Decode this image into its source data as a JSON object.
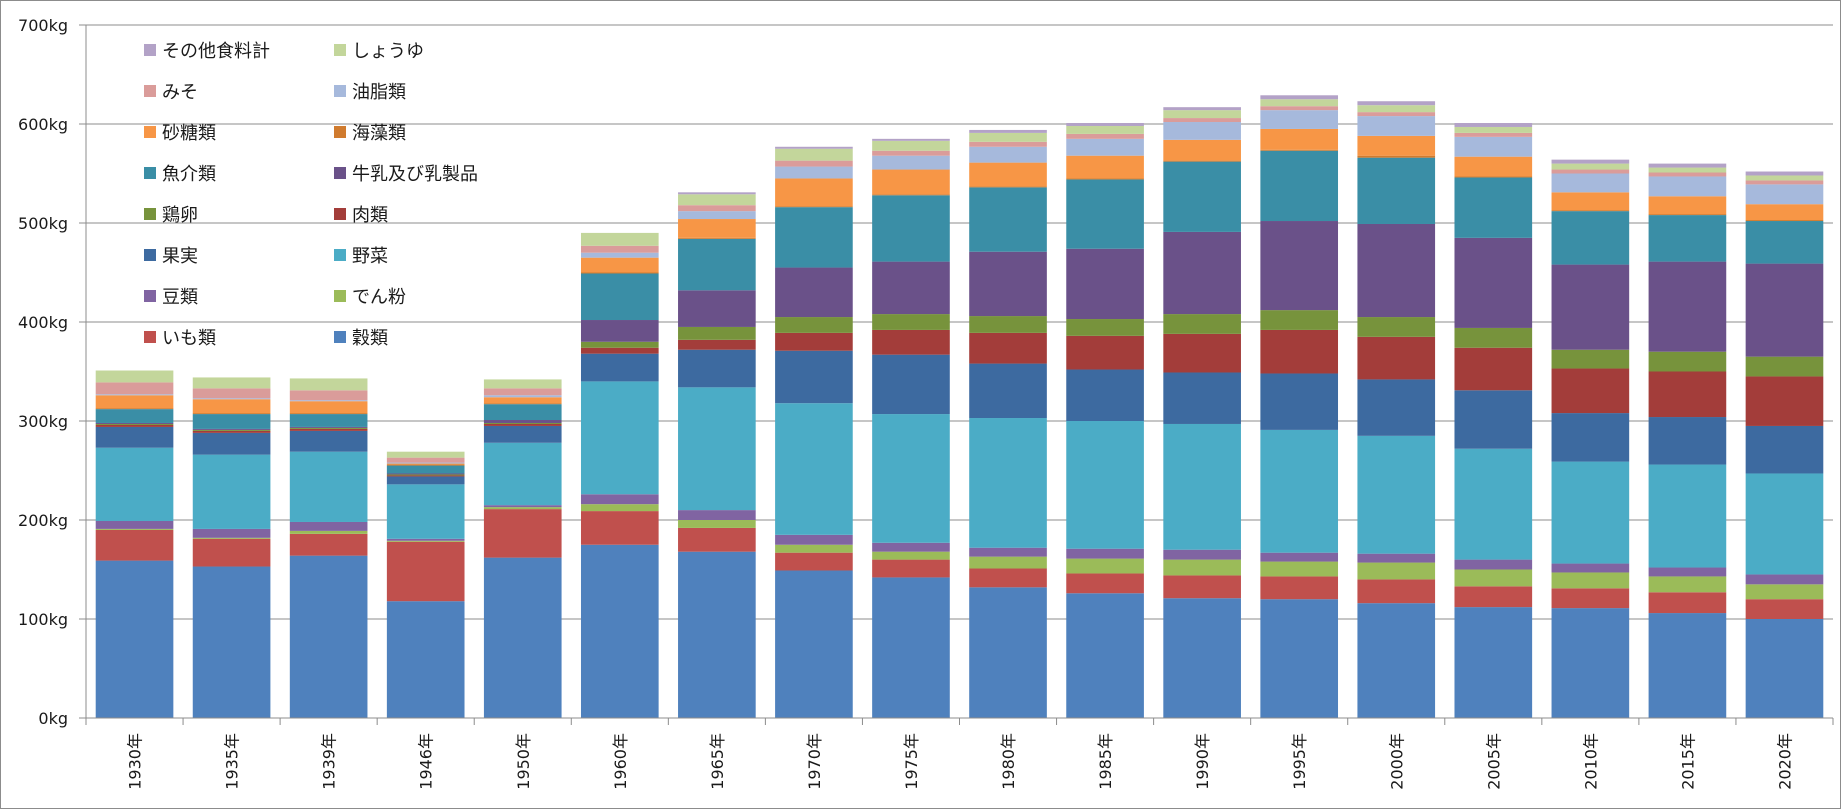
{
  "chart_data": {
    "type": "bar",
    "stacked": true,
    "title": "",
    "xlabel": "",
    "ylabel": "",
    "ylim": [
      0,
      700
    ],
    "yticks": [
      "0kg",
      "100kg",
      "200kg",
      "300kg",
      "400kg",
      "500kg",
      "600kg",
      "700kg"
    ],
    "grid": true,
    "legend_position": "top-left",
    "categories": [
      "1930年",
      "1935年",
      "1939年",
      "1946年",
      "1950年",
      "1960年",
      "1965年",
      "1970年",
      "1975年",
      "1980年",
      "1985年",
      "1990年",
      "1995年",
      "2000年",
      "2005年",
      "2010年",
      "2015年",
      "2020年"
    ],
    "legend_order": [
      "その他食料計",
      "しょうゆ",
      "みそ",
      "油脂類",
      "砂糖類",
      "海藻類",
      "魚介類",
      "牛乳及び乳製品",
      "鶏卵",
      "肉類",
      "果実",
      "野菜",
      "豆類",
      "でん粉",
      "いも類",
      "穀類"
    ],
    "series": [
      {
        "name": "穀類",
        "color": "#4f81bd",
        "values": [
          159,
          153,
          164,
          118,
          162,
          175,
          168,
          149,
          142,
          132,
          126,
          121,
          120,
          116,
          112,
          111,
          106,
          100
        ]
      },
      {
        "name": "いも類",
        "color": "#c0504d",
        "values": [
          31,
          28,
          22,
          60,
          49,
          34,
          24,
          18,
          18,
          19,
          20,
          23,
          23,
          24,
          21,
          20,
          21,
          20
        ]
      },
      {
        "name": "でん粉",
        "color": "#9bbb59",
        "values": [
          1,
          1,
          3,
          1,
          2,
          7,
          8,
          8,
          8,
          12,
          15,
          16,
          15,
          17,
          17,
          16,
          16,
          15
        ]
      },
      {
        "name": "豆類",
        "color": "#8064a2",
        "values": [
          8,
          9,
          9,
          2,
          2,
          10,
          10,
          10,
          9,
          9,
          10,
          10,
          9,
          9,
          10,
          9,
          9,
          10
        ]
      },
      {
        "name": "野菜",
        "color": "#4bacc6",
        "values": [
          74,
          75,
          71,
          55,
          63,
          114,
          124,
          133,
          130,
          131,
          129,
          127,
          124,
          119,
          112,
          103,
          104,
          102
        ]
      },
      {
        "name": "果実",
        "color": "#3d6aa0",
        "values": [
          21,
          22,
          21,
          8,
          17,
          28,
          38,
          53,
          60,
          55,
          52,
          52,
          57,
          57,
          59,
          49,
          48,
          48
        ]
      },
      {
        "name": "肉類",
        "color": "#a33d3a",
        "values": [
          2,
          2,
          2,
          1,
          2,
          6,
          10,
          18,
          25,
          31,
          34,
          39,
          44,
          43,
          43,
          45,
          46,
          50
        ]
      },
      {
        "name": "鶏卵",
        "color": "#77933c",
        "values": [
          1,
          1,
          1,
          1,
          1,
          6,
          13,
          16,
          16,
          17,
          17,
          20,
          20,
          20,
          20,
          19,
          20,
          20
        ]
      },
      {
        "name": "牛乳及び乳製品",
        "color": "#6a5189",
        "values": [
          1,
          1,
          1,
          1,
          3,
          22,
          37,
          50,
          53,
          65,
          71,
          83,
          90,
          94,
          91,
          86,
          91,
          94
        ]
      },
      {
        "name": "魚介類",
        "color": "#3a8ea6",
        "values": [
          14,
          15,
          13,
          8,
          16,
          47,
          52,
          61,
          67,
          65,
          70,
          71,
          71,
          67,
          61,
          54,
          47,
          43
        ]
      },
      {
        "name": "海藻類",
        "color": "#d07b2e",
        "values": [
          1,
          1,
          1,
          1,
          1,
          1,
          1,
          1,
          1,
          1,
          1,
          1,
          1,
          2,
          1,
          1,
          1,
          1
        ]
      },
      {
        "name": "砂糖類",
        "color": "#f79646",
        "values": [
          13,
          14,
          12,
          1,
          6,
          15,
          19,
          28,
          25,
          24,
          23,
          21,
          21,
          20,
          20,
          18,
          18,
          16
        ]
      },
      {
        "name": "油脂類",
        "color": "#a6b9dc",
        "values": [
          1,
          1,
          1,
          1,
          2,
          5,
          8,
          12,
          14,
          16,
          17,
          18,
          19,
          20,
          20,
          19,
          20,
          20
        ]
      },
      {
        "name": "みそ",
        "color": "#da9c9a",
        "values": [
          12,
          10,
          10,
          5,
          7,
          7,
          6,
          6,
          5,
          5,
          5,
          4,
          4,
          4,
          4,
          4,
          4,
          4
        ]
      },
      {
        "name": "しょうゆ",
        "color": "#c3d69b",
        "values": [
          12,
          11,
          12,
          6,
          9,
          13,
          11,
          12,
          10,
          9,
          8,
          8,
          7,
          7,
          6,
          6,
          5,
          5
        ]
      },
      {
        "name": "その他食料計",
        "color": "#b3a2c7",
        "values": [
          0,
          0,
          0,
          0,
          0,
          0,
          2,
          2,
          2,
          3,
          3,
          3,
          4,
          4,
          4,
          4,
          4,
          4
        ]
      }
    ]
  }
}
